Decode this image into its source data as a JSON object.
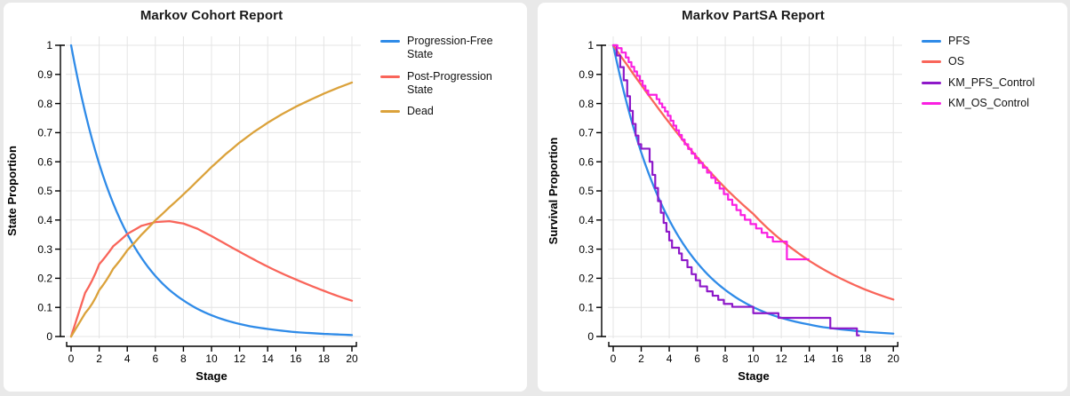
{
  "page": {
    "background": "#e9e9e9",
    "card_background": "#ffffff"
  },
  "colors": {
    "blue": "#2f8be8",
    "red": "#f9655a",
    "gold": "#dba23b",
    "purple": "#8e19c9",
    "magenta": "#fa20e1",
    "grid": "#e4e4e4",
    "axis": "#000000",
    "title": "#1a1a1a"
  },
  "charts": [
    {
      "id": "cohort",
      "title": "Markov Cohort Report",
      "xlabel": "Stage",
      "ylabel": "State Proportion",
      "x_tick_values": [
        0,
        2,
        4,
        6,
        8,
        10,
        12,
        14,
        16,
        18,
        20
      ],
      "x_tick_labels": [
        "0",
        "2",
        "4",
        "6",
        "8",
        "10",
        "12",
        "14",
        "16",
        "18",
        "20"
      ],
      "y_tick_values": [
        1,
        0.9,
        0.8,
        0.7,
        0.6,
        0.5,
        0.4,
        0.3,
        0.2,
        0.1,
        0
      ],
      "y_tick_labels": [
        "1",
        "0.9",
        "0.8",
        "0.7",
        "0.6",
        "0.5",
        "0.4",
        "0.3",
        "0.2",
        "0.1",
        "0"
      ],
      "legend": [
        {
          "label": "Progression-Free State",
          "color": "blue"
        },
        {
          "label": "Post-Progression State",
          "color": "red"
        },
        {
          "label": "Dead",
          "color": "gold"
        }
      ],
      "chart_data": {
        "type": "line",
        "title": "Markov Cohort Report",
        "xlabel": "Stage",
        "ylabel": "State Proportion",
        "xlim": [
          0,
          20
        ],
        "ylim": [
          0,
          1
        ],
        "grid": true,
        "legend_position": "right",
        "x": [
          0,
          1,
          2,
          3,
          4,
          5,
          6,
          7,
          8,
          9,
          10,
          11,
          12,
          13,
          14,
          15,
          16,
          17,
          18,
          19,
          20
        ],
        "series": [
          {
            "name": "Progression-Free State",
            "color": "blue",
            "values": [
              1.0,
              0.77,
              0.593,
              0.457,
              0.352,
              0.271,
              0.208,
              0.16,
              0.124,
              0.095,
              0.073,
              0.056,
              0.043,
              0.033,
              0.026,
              0.02,
              0.015,
              0.012,
              0.009,
              0.007,
              0.005
            ]
          },
          {
            "name": "Post-Progression State",
            "color": "red",
            "values": [
              0.0,
              0.15,
              0.248,
              0.31,
              0.352,
              0.38,
              0.393,
              0.396,
              0.388,
              0.37,
              0.345,
              0.318,
              0.291,
              0.265,
              0.24,
              0.217,
              0.196,
              0.176,
              0.157,
              0.139,
              0.123
            ]
          },
          {
            "name": "Dead",
            "color": "gold",
            "values": [
              0.0,
              0.08,
              0.159,
              0.233,
              0.296,
              0.349,
              0.399,
              0.444,
              0.488,
              0.535,
              0.582,
              0.626,
              0.666,
              0.702,
              0.734,
              0.763,
              0.789,
              0.812,
              0.834,
              0.854,
              0.872
            ]
          }
        ]
      }
    },
    {
      "id": "partsa",
      "title": "Markov PartSA Report",
      "xlabel": "Stage",
      "ylabel": "Survival Proportion",
      "x_tick_values": [
        0,
        2,
        4,
        6,
        8,
        10,
        12,
        14,
        16,
        18,
        20
      ],
      "x_tick_labels": [
        "0",
        "2",
        "4",
        "6",
        "8",
        "10",
        "12",
        "14",
        "16",
        "18",
        "20"
      ],
      "y_tick_values": [
        1,
        0.9,
        0.8,
        0.7,
        0.6,
        0.5,
        0.4,
        0.3,
        0.2,
        0.1,
        0
      ],
      "y_tick_labels": [
        "1",
        "0.9",
        "0.8",
        "0.7",
        "0.6",
        "0.5",
        "0.4",
        "0.3",
        "0.2",
        "0.1",
        "0"
      ],
      "legend": [
        {
          "label": "PFS",
          "color": "blue"
        },
        {
          "label": "OS",
          "color": "red"
        },
        {
          "label": "KM_PFS_Control",
          "color": "purple"
        },
        {
          "label": "KM_OS_Control",
          "color": "magenta"
        }
      ],
      "chart_data": {
        "type": "line",
        "title": "Markov PartSA Report",
        "xlabel": "Stage",
        "ylabel": "Survival Proportion",
        "xlim": [
          0,
          20
        ],
        "ylim": [
          0,
          1
        ],
        "grid": true,
        "legend_position": "right",
        "x": [
          0,
          1,
          2,
          3,
          4,
          5,
          6,
          7,
          8,
          9,
          10,
          11,
          12,
          13,
          14,
          15,
          16,
          17,
          18,
          19,
          20
        ],
        "series": [
          {
            "name": "PFS",
            "color": "blue",
            "values": [
              1.0,
              0.795,
              0.632,
              0.503,
              0.4,
              0.318,
              0.253,
              0.201,
              0.16,
              0.127,
              0.101,
              0.08,
              0.064,
              0.051,
              0.041,
              0.032,
              0.026,
              0.021,
              0.016,
              0.013,
              0.01
            ]
          },
          {
            "name": "OS",
            "color": "red",
            "values": [
              1.0,
              0.932,
              0.864,
              0.798,
              0.734,
              0.673,
              0.615,
              0.561,
              0.51,
              0.464,
              0.421,
              0.373,
              0.331,
              0.294,
              0.26,
              0.231,
              0.205,
              0.182,
              0.161,
              0.143,
              0.127
            ]
          },
          {
            "name": "KM_PFS_Control",
            "color": "purple",
            "type": "step",
            "end_t": 17.55,
            "points": [
              [
                0,
                1.0
              ],
              [
                0.25,
                0.965
              ],
              [
                0.5,
                0.925
              ],
              [
                0.75,
                0.88
              ],
              [
                1.0,
                0.825
              ],
              [
                1.2,
                0.775
              ],
              [
                1.4,
                0.73
              ],
              [
                1.6,
                0.69
              ],
              [
                1.8,
                0.66
              ],
              [
                2.0,
                0.645
              ],
              [
                2.6,
                0.6
              ],
              [
                2.8,
                0.555
              ],
              [
                3.0,
                0.51
              ],
              [
                3.2,
                0.465
              ],
              [
                3.4,
                0.425
              ],
              [
                3.6,
                0.39
              ],
              [
                3.8,
                0.36
              ],
              [
                4.0,
                0.33
              ],
              [
                4.2,
                0.305
              ],
              [
                4.7,
                0.285
              ],
              [
                4.9,
                0.262
              ],
              [
                5.3,
                0.238
              ],
              [
                5.6,
                0.214
              ],
              [
                5.9,
                0.193
              ],
              [
                6.2,
                0.172
              ],
              [
                6.7,
                0.155
              ],
              [
                7.1,
                0.14
              ],
              [
                7.5,
                0.126
              ],
              [
                7.9,
                0.112
              ],
              [
                8.5,
                0.102
              ],
              [
                10.0,
                0.08
              ],
              [
                11.8,
                0.064
              ],
              [
                15.5,
                0.028
              ],
              [
                17.4,
                0.004
              ]
            ]
          },
          {
            "name": "KM_OS_Control",
            "color": "magenta",
            "type": "step",
            "end_t": 13.95,
            "points": [
              [
                0,
                1.0
              ],
              [
                0.3,
                0.99
              ],
              [
                0.6,
                0.975
              ],
              [
                0.9,
                0.958
              ],
              [
                1.1,
                0.942
              ],
              [
                1.3,
                0.926
              ],
              [
                1.5,
                0.91
              ],
              [
                1.7,
                0.895
              ],
              [
                1.9,
                0.878
              ],
              [
                2.1,
                0.861
              ],
              [
                2.3,
                0.845
              ],
              [
                2.5,
                0.83
              ],
              [
                3.1,
                0.815
              ],
              [
                3.3,
                0.8
              ],
              [
                3.5,
                0.787
              ],
              [
                3.7,
                0.773
              ],
              [
                3.9,
                0.758
              ],
              [
                4.1,
                0.741
              ],
              [
                4.3,
                0.724
              ],
              [
                4.5,
                0.708
              ],
              [
                4.7,
                0.692
              ],
              [
                4.9,
                0.676
              ],
              [
                5.1,
                0.66
              ],
              [
                5.35,
                0.644
              ],
              [
                5.6,
                0.628
              ],
              [
                5.85,
                0.612
              ],
              [
                6.1,
                0.596
              ],
              [
                6.4,
                0.58
              ],
              [
                6.7,
                0.563
              ],
              [
                7.0,
                0.545
              ],
              [
                7.3,
                0.527
              ],
              [
                7.6,
                0.508
              ],
              [
                7.9,
                0.489
              ],
              [
                8.2,
                0.47
              ],
              [
                8.5,
                0.452
              ],
              [
                8.8,
                0.434
              ],
              [
                9.1,
                0.417
              ],
              [
                9.4,
                0.401
              ],
              [
                9.8,
                0.386
              ],
              [
                10.2,
                0.371
              ],
              [
                10.6,
                0.356
              ],
              [
                11.0,
                0.341
              ],
              [
                11.4,
                0.326
              ],
              [
                12.4,
                0.265
              ]
            ]
          }
        ]
      }
    }
  ]
}
